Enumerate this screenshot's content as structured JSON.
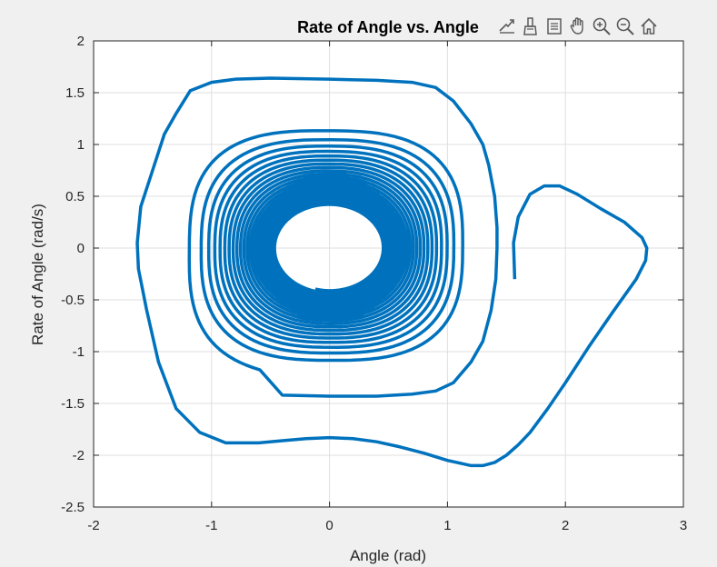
{
  "chart_data": {
    "type": "line",
    "title": "Rate of Angle vs. Angle",
    "xlabel": "Angle (rad)",
    "ylabel": "Rate of Angle (rad/s)",
    "xlim": [
      -2,
      3
    ],
    "ylim": [
      -2.5,
      2
    ],
    "xticks": [
      -2,
      -1,
      0,
      1,
      2,
      3
    ],
    "yticks": [
      -2.5,
      -2,
      -1.5,
      -1,
      -0.5,
      0,
      0.5,
      1,
      1.5,
      2
    ],
    "xtick_labels": [
      "-2",
      "-1",
      "0",
      "1",
      "2",
      "3"
    ],
    "ytick_labels": [
      "-2.5",
      "-2",
      "-1.5",
      "-1",
      "-0.5",
      "0",
      "0.5",
      "1",
      "1.5",
      "2"
    ],
    "grid": true,
    "series": [
      {
        "color": "#0072BD",
        "start": {
          "x": 1.57,
          "y": -0.3
        },
        "first_swing": [
          {
            "x": 1.57,
            "y": -0.3
          },
          {
            "x": 1.56,
            "y": 0.05
          },
          {
            "x": 1.6,
            "y": 0.3
          },
          {
            "x": 1.7,
            "y": 0.52
          },
          {
            "x": 1.82,
            "y": 0.6
          },
          {
            "x": 1.95,
            "y": 0.6
          },
          {
            "x": 2.1,
            "y": 0.52
          },
          {
            "x": 2.3,
            "y": 0.38
          },
          {
            "x": 2.5,
            "y": 0.25
          },
          {
            "x": 2.65,
            "y": 0.1
          },
          {
            "x": 2.69,
            "y": 0.0
          },
          {
            "x": 2.68,
            "y": -0.12
          },
          {
            "x": 2.6,
            "y": -0.3
          },
          {
            "x": 2.4,
            "y": -0.62
          },
          {
            "x": 2.2,
            "y": -0.95
          },
          {
            "x": 2.0,
            "y": -1.3
          },
          {
            "x": 1.85,
            "y": -1.55
          },
          {
            "x": 1.7,
            "y": -1.78
          },
          {
            "x": 1.6,
            "y": -1.9
          },
          {
            "x": 1.5,
            "y": -2.0
          },
          {
            "x": 1.4,
            "y": -2.07
          },
          {
            "x": 1.3,
            "y": -2.1
          },
          {
            "x": 1.2,
            "y": -2.1
          },
          {
            "x": 1.0,
            "y": -2.05
          },
          {
            "x": 0.8,
            "y": -1.98
          },
          {
            "x": 0.6,
            "y": -1.92
          },
          {
            "x": 0.4,
            "y": -1.87
          },
          {
            "x": 0.2,
            "y": -1.84
          },
          {
            "x": 0.0,
            "y": -1.83
          },
          {
            "x": -0.2,
            "y": -1.84
          },
          {
            "x": -0.4,
            "y": -1.86
          },
          {
            "x": -0.6,
            "y": -1.88
          },
          {
            "x": -0.88,
            "y": -1.88
          },
          {
            "x": -1.1,
            "y": -1.78
          },
          {
            "x": -1.3,
            "y": -1.55
          },
          {
            "x": -1.45,
            "y": -1.1
          },
          {
            "x": -1.55,
            "y": -0.6
          },
          {
            "x": -1.62,
            "y": -0.2
          },
          {
            "x": -1.63,
            "y": 0.05
          },
          {
            "x": -1.6,
            "y": 0.4
          },
          {
            "x": -1.5,
            "y": 0.75
          },
          {
            "x": -1.4,
            "y": 1.1
          },
          {
            "x": -1.3,
            "y": 1.3
          },
          {
            "x": -1.18,
            "y": 1.52
          },
          {
            "x": -1.0,
            "y": 1.6
          },
          {
            "x": -0.8,
            "y": 1.63
          },
          {
            "x": -0.5,
            "y": 1.64
          },
          {
            "x": 0.0,
            "y": 1.63
          },
          {
            "x": 0.4,
            "y": 1.62
          },
          {
            "x": 0.7,
            "y": 1.6
          },
          {
            "x": 0.9,
            "y": 1.55
          },
          {
            "x": 1.05,
            "y": 1.42
          },
          {
            "x": 1.2,
            "y": 1.2
          },
          {
            "x": 1.3,
            "y": 1.0
          },
          {
            "x": 1.35,
            "y": 0.8
          },
          {
            "x": 1.4,
            "y": 0.5
          },
          {
            "x": 1.42,
            "y": 0.2
          },
          {
            "x": 1.42,
            "y": 0.0
          },
          {
            "x": 1.41,
            "y": -0.3
          },
          {
            "x": 1.37,
            "y": -0.6
          },
          {
            "x": 1.3,
            "y": -0.9
          },
          {
            "x": 1.2,
            "y": -1.1
          },
          {
            "x": 1.05,
            "y": -1.3
          },
          {
            "x": 0.9,
            "y": -1.38
          },
          {
            "x": 0.7,
            "y": -1.41
          },
          {
            "x": 0.4,
            "y": -1.43
          },
          {
            "x": 0.0,
            "y": -1.43
          },
          {
            "x": -0.4,
            "y": -1.42
          }
        ],
        "spiral": {
          "center": {
            "x": 0,
            "y": 0
          },
          "outer_radius": {
            "x": 1.25,
            "y": 1.23
          },
          "inner_radius": {
            "x": 0.45,
            "y": 0.41
          },
          "turns": 22
        }
      }
    ]
  },
  "toolbar": {
    "buttons": [
      "export-icon",
      "brush-icon",
      "data-tips-icon",
      "pan-icon",
      "zoom-in-icon",
      "zoom-out-icon",
      "home-icon"
    ]
  }
}
